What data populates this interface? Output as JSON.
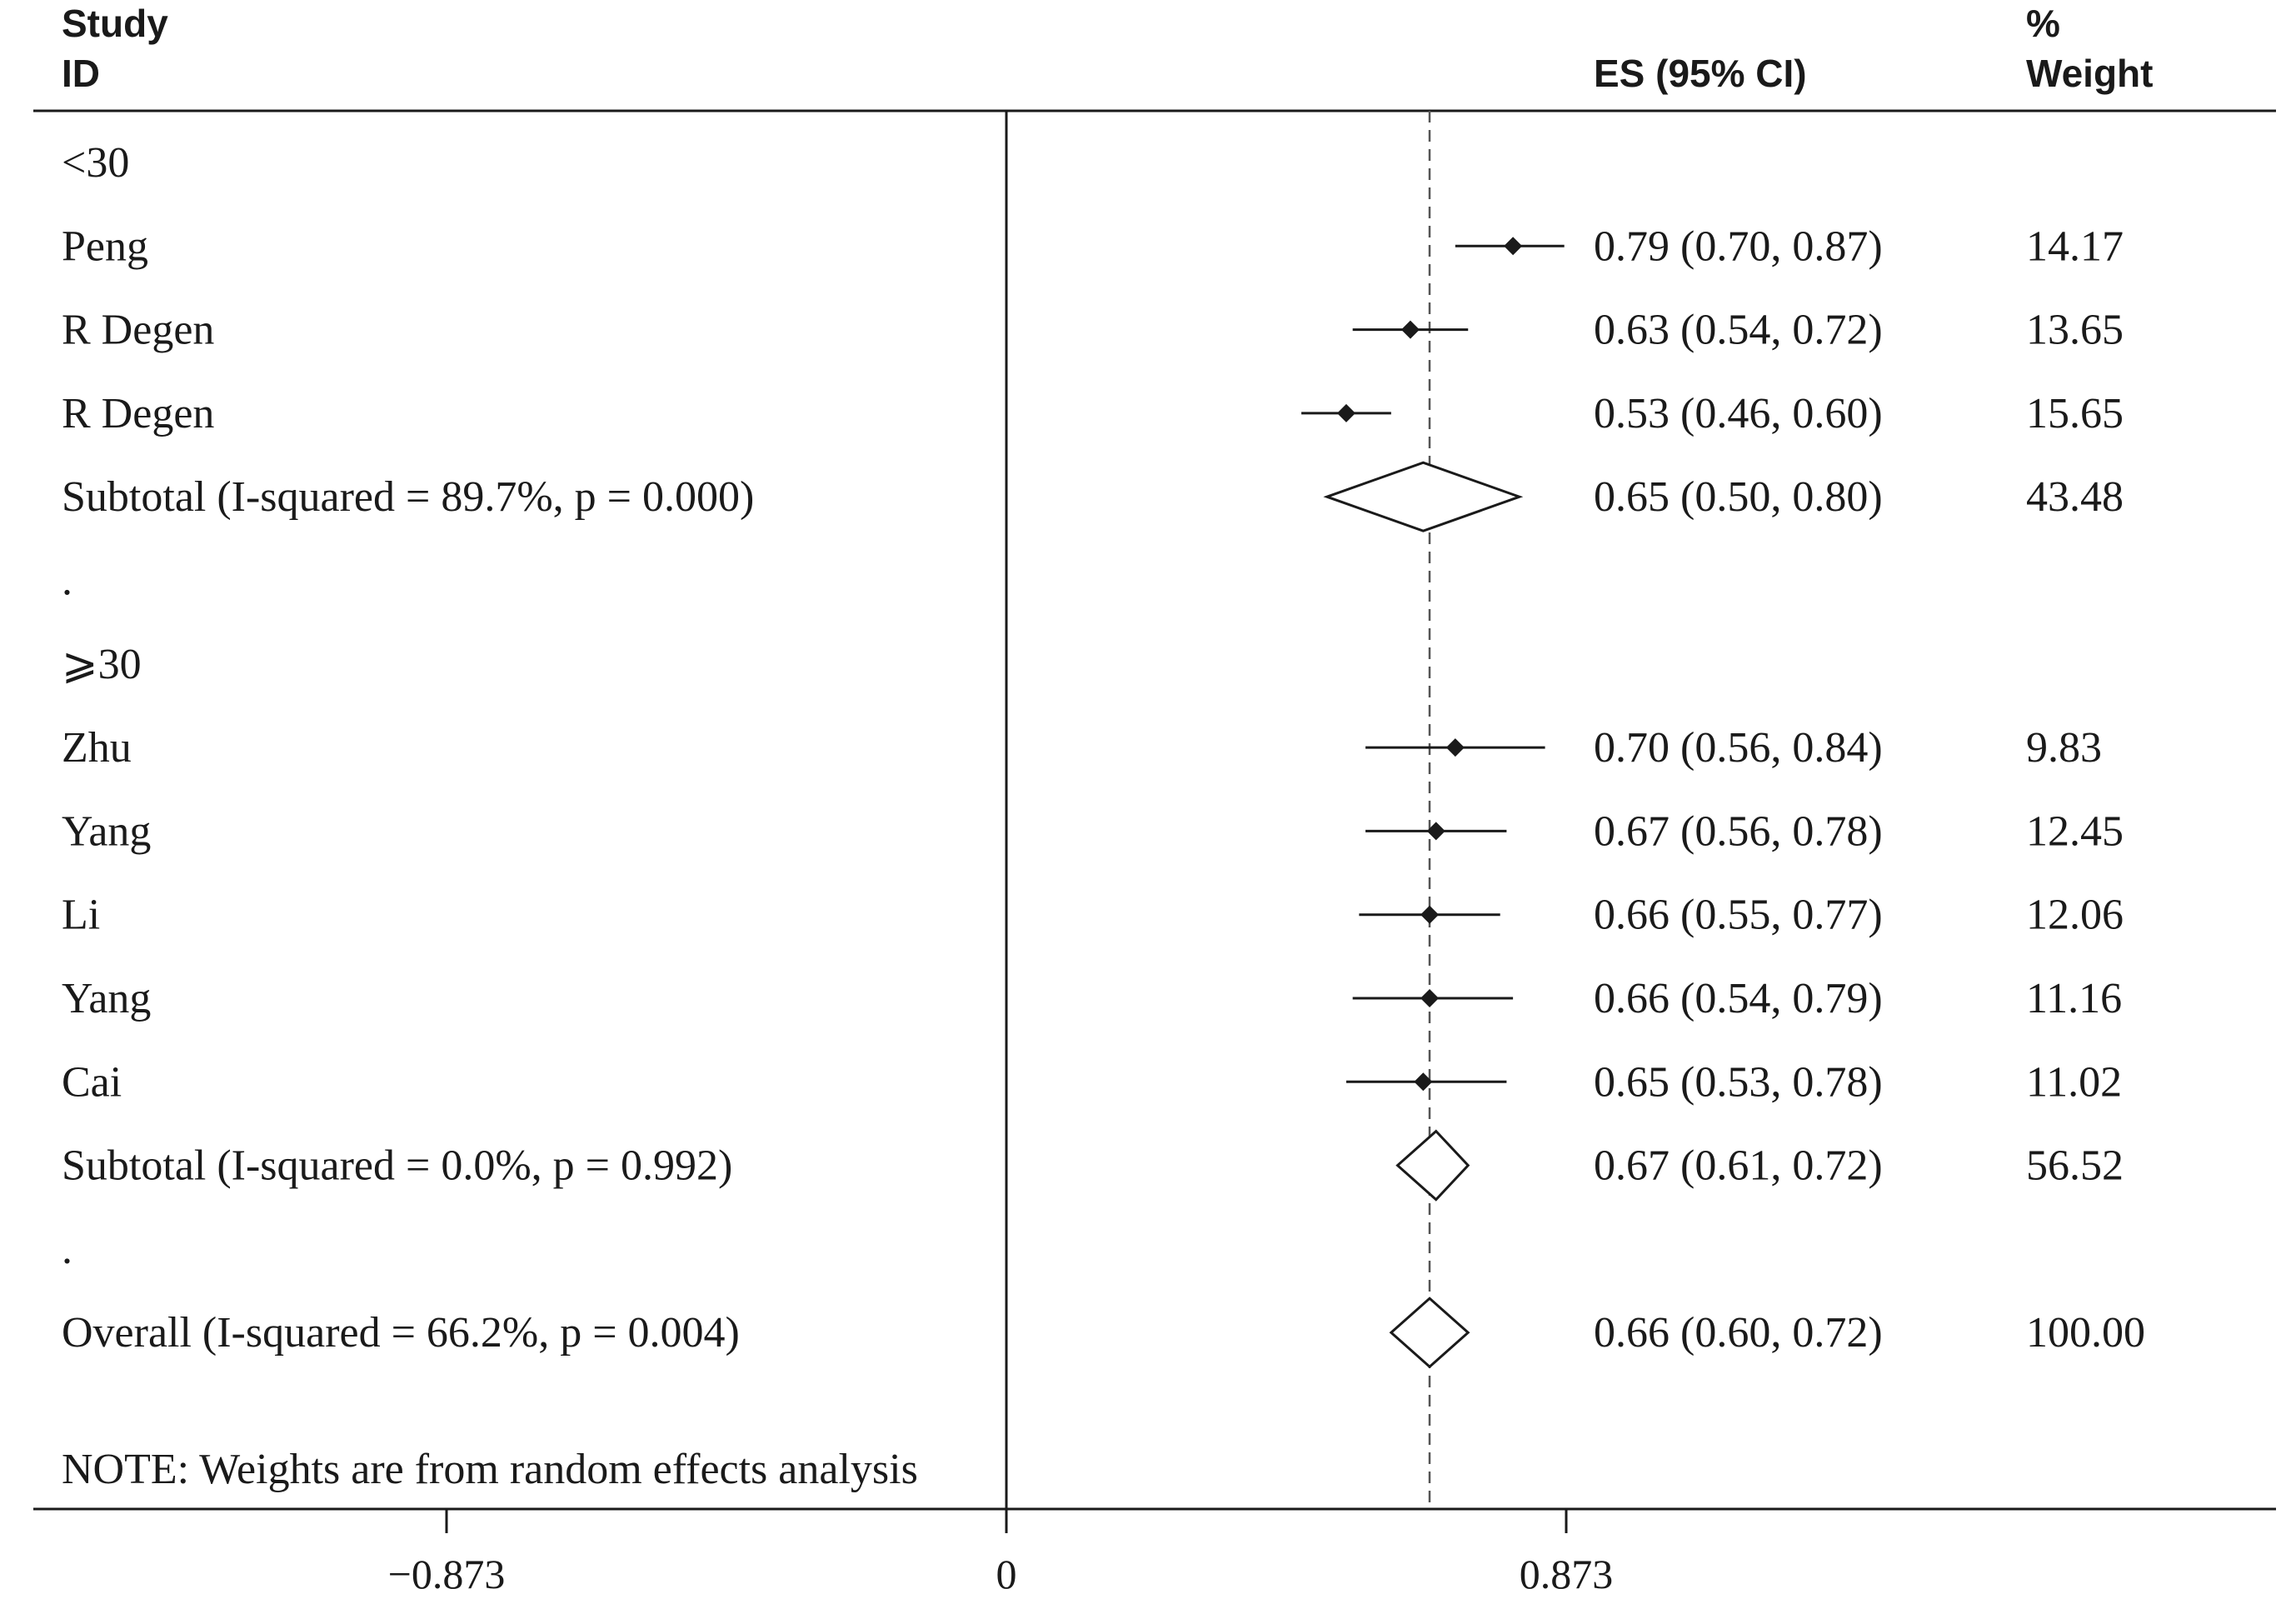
{
  "chart_data": {
    "type": "forest",
    "headers": {
      "study_line1": "Study",
      "study_line2": "ID",
      "es": "ES (95% CI)",
      "weight_line1": "%",
      "weight_line2": "Weight"
    },
    "rows": [
      {
        "kind": "group",
        "label": "<30"
      },
      {
        "kind": "study",
        "label": "Peng",
        "es": 0.79,
        "lo": 0.7,
        "hi": 0.87,
        "ci_text": "0.79 (0.70, 0.87)",
        "weight": "14.17"
      },
      {
        "kind": "study",
        "label": "R Degen",
        "es": 0.63,
        "lo": 0.54,
        "hi": 0.72,
        "ci_text": "0.63 (0.54, 0.72)",
        "weight": "13.65"
      },
      {
        "kind": "study",
        "label": "R Degen",
        "es": 0.53,
        "lo": 0.46,
        "hi": 0.6,
        "ci_text": "0.53 (0.46, 0.60)",
        "weight": "15.65"
      },
      {
        "kind": "subtotal",
        "label": "Subtotal  (I-squared = 89.7%, p = 0.000)",
        "es": 0.65,
        "lo": 0.5,
        "hi": 0.8,
        "ci_text": "0.65 (0.50, 0.80)",
        "weight": "43.48"
      },
      {
        "kind": "spacer",
        "label": "."
      },
      {
        "kind": "group",
        "label": "⩾30"
      },
      {
        "kind": "study",
        "label": "Zhu",
        "es": 0.7,
        "lo": 0.56,
        "hi": 0.84,
        "ci_text": "0.70 (0.56, 0.84)",
        "weight": "9.83"
      },
      {
        "kind": "study",
        "label": "Yang",
        "es": 0.67,
        "lo": 0.56,
        "hi": 0.78,
        "ci_text": "0.67 (0.56, 0.78)",
        "weight": "12.45"
      },
      {
        "kind": "study",
        "label": "Li",
        "es": 0.66,
        "lo": 0.55,
        "hi": 0.77,
        "ci_text": "0.66 (0.55, 0.77)",
        "weight": "12.06"
      },
      {
        "kind": "study",
        "label": "Yang",
        "es": 0.66,
        "lo": 0.54,
        "hi": 0.79,
        "ci_text": "0.66 (0.54, 0.79)",
        "weight": "11.16"
      },
      {
        "kind": "study",
        "label": "Cai",
        "es": 0.65,
        "lo": 0.53,
        "hi": 0.78,
        "ci_text": "0.65 (0.53, 0.78)",
        "weight": "11.02"
      },
      {
        "kind": "subtotal",
        "label": "Subtotal  (I-squared = 0.0%, p = 0.992)",
        "es": 0.67,
        "lo": 0.61,
        "hi": 0.72,
        "ci_text": "0.67 (0.61, 0.72)",
        "weight": "56.52"
      },
      {
        "kind": "spacer",
        "label": "."
      },
      {
        "kind": "overall",
        "label": "Overall  (I-squared = 66.2%, p = 0.004)",
        "es": 0.66,
        "lo": 0.6,
        "hi": 0.72,
        "ci_text": "0.66 (0.60, 0.72)",
        "weight": "100.00"
      }
    ],
    "note": "NOTE: Weights are from random effects analysis",
    "x_ticks": [
      {
        "value": -0.873,
        "label": "−0.873"
      },
      {
        "value": 0,
        "label": "0"
      },
      {
        "value": 0.873,
        "label": "0.873"
      }
    ],
    "null_line": 0,
    "overall_line": 0.66,
    "xlim": [
      -1.55,
      1.9
    ]
  }
}
